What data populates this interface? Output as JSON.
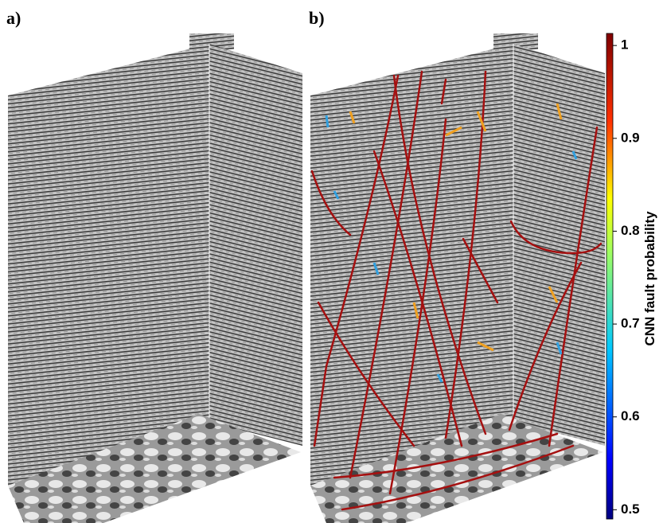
{
  "panels": [
    {
      "label": "a)"
    },
    {
      "label": "b)"
    }
  ],
  "colorbar": {
    "label": "CNN fault probability",
    "lim": [
      0.49,
      1.013
    ],
    "ticks": [
      0.5,
      0.6,
      0.7,
      0.8,
      0.9,
      1
    ]
  }
}
